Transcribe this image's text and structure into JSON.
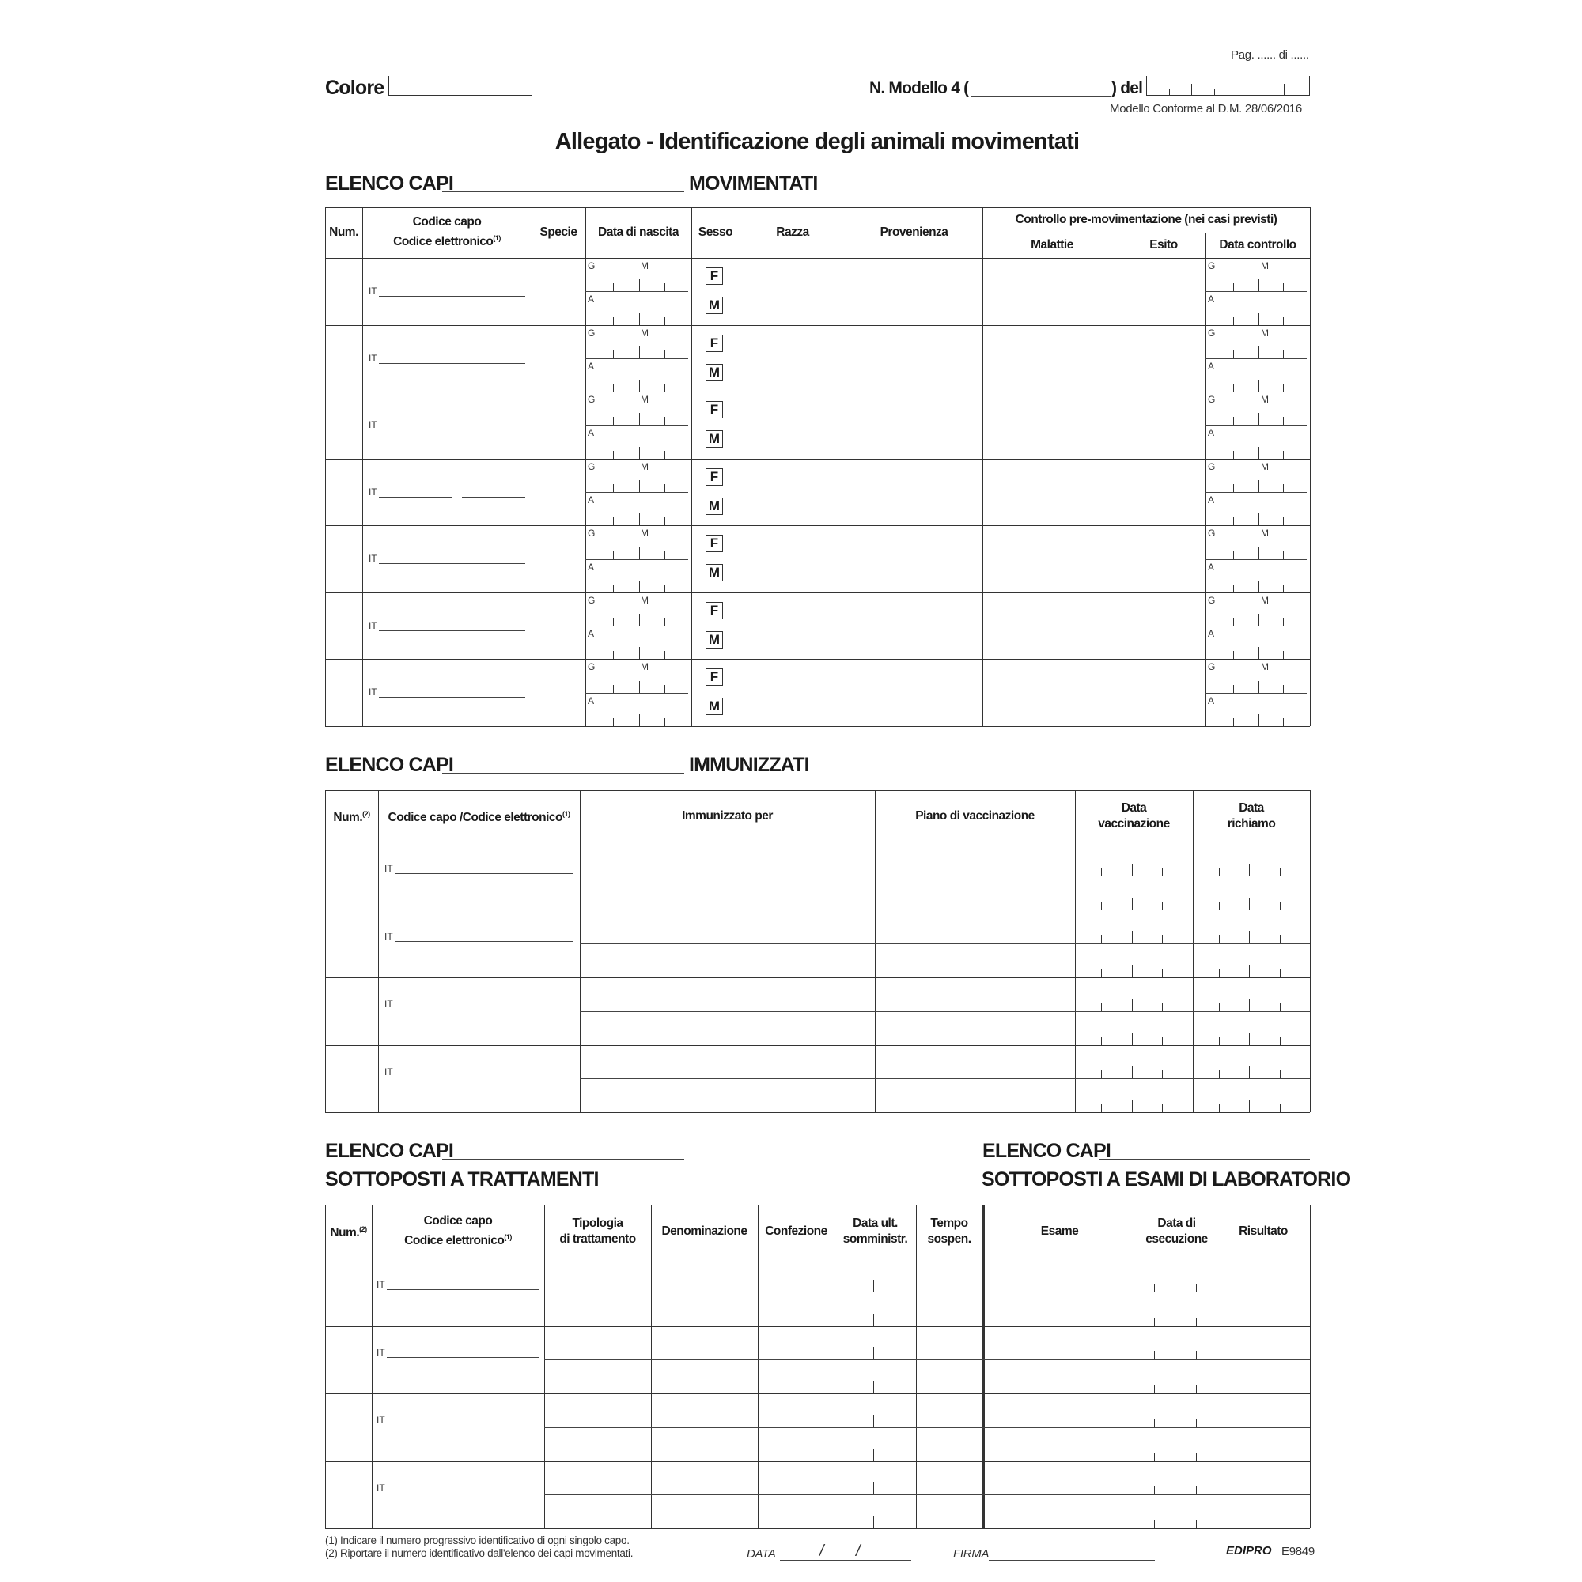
{
  "header": {
    "page": "Pag. ...... di ......",
    "colore_label": "Colore",
    "modello_label": "N. Modello 4 (",
    "del_label": ") del",
    "conformity": "Modello Conforme al D.M. 28/06/2016",
    "title": "Allegato - Identificazione degli animali movimentati"
  },
  "common": {
    "it_prefix": "IT",
    "date_labels": {
      "day": "G",
      "month": "M",
      "year": "A"
    },
    "sex_options": [
      "F",
      "M"
    ]
  },
  "section1": {
    "prefix": "ELENCO CAPI",
    "suffix": "MOVIMENTATI",
    "columns": [
      "Num.",
      "Codice capo\nCodice elettronico",
      "Specie",
      "Data di nascita",
      "Sesso",
      "Razza",
      "Provenienza"
    ],
    "footnote_mark": "(1)",
    "group_header": "Controllo pre-movimentazione (nei casi previsti)",
    "sub_columns": [
      "Malattie",
      "Esito",
      "Data controllo"
    ],
    "row_count": 7
  },
  "section2": {
    "prefix": "ELENCO CAPI",
    "suffix": "IMMUNIZZATI",
    "columns": [
      "Num.",
      "Codice capo /Codice elettronico",
      "Immunizzato per",
      "Piano di vaccinazione",
      "Data\nvaccinazione",
      "Data\nrichiamo"
    ],
    "marks": [
      "(2)",
      "(1)"
    ],
    "row_count": 4
  },
  "section3": {
    "left_prefix": "ELENCO CAPI",
    "left_title": "SOTTOPOSTI A TRATTAMENTI",
    "right_prefix": "ELENCO CAPI",
    "right_title": "SOTTOPOSTI A ESAMI DI LABORATORIO",
    "columns": [
      "Num.",
      "Codice capo\nCodice elettronico",
      "Tipologia\ndi trattamento",
      "Denominazione",
      "Confezione",
      "Data ult.\nsomministr.",
      "Tempo\nsospen.",
      "Esame",
      "Data di\nesecuzione",
      "Risultato"
    ],
    "marks": [
      "(2)",
      "(1)"
    ],
    "row_count": 4
  },
  "footer": {
    "note1": "(1) Indicare il numero progressivo identificativo di ogni singolo capo.",
    "note2": "(2) Riportare il numero identificativo dall'elenco dei capi movimentati.",
    "data_label": "DATA",
    "date_sep": "/",
    "firma_label": "FIRMA",
    "brand": "EDIPRO",
    "code": "E9849"
  }
}
